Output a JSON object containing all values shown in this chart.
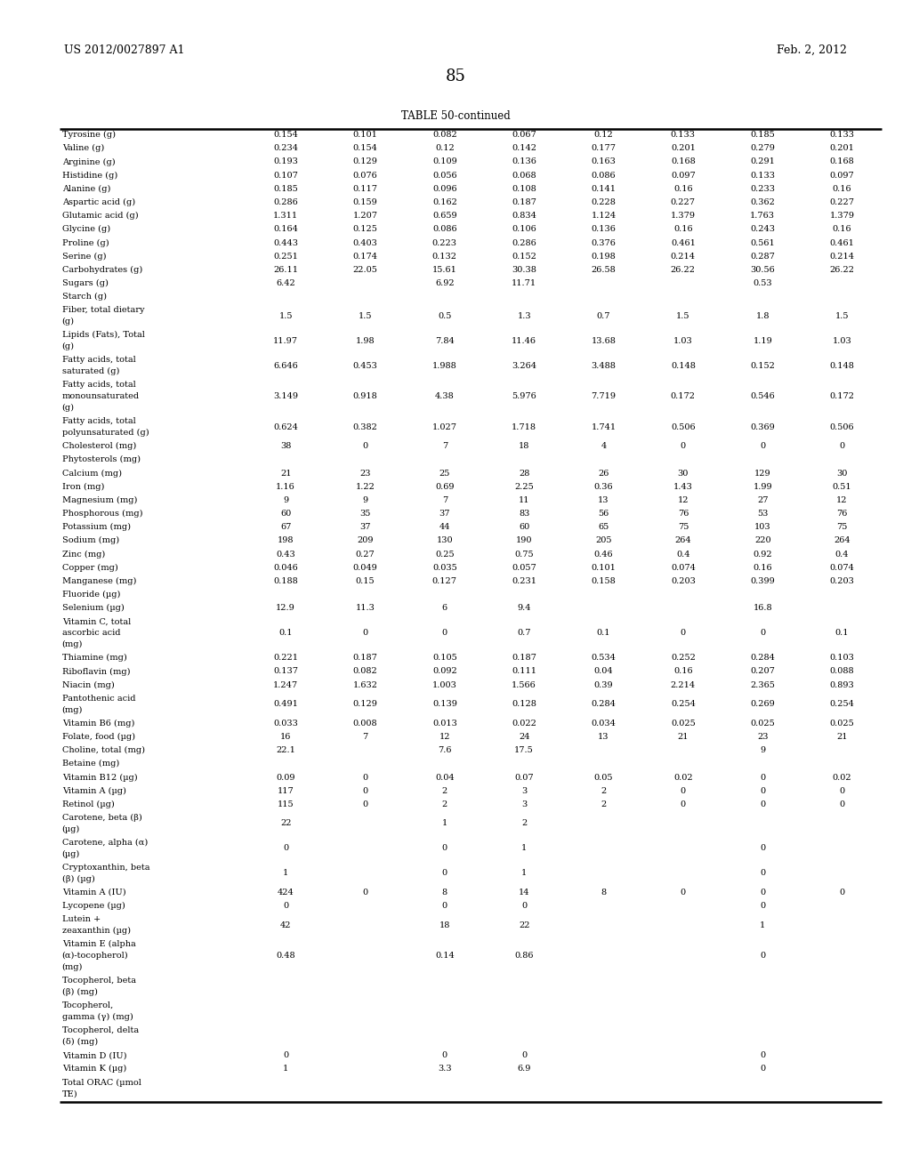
{
  "page_number": "85",
  "patent_left": "US 2012/0027897 A1",
  "patent_right": "Feb. 2, 2012",
  "table_title": "TABLE 50-continued",
  "rows": [
    [
      "Tyrosine (g)",
      "0.154",
      "0.101",
      "0.082",
      "0.067",
      "0.12",
      "0.133",
      "0.185",
      "0.133"
    ],
    [
      "Valine (g)",
      "0.234",
      "0.154",
      "0.12",
      "0.142",
      "0.177",
      "0.201",
      "0.279",
      "0.201"
    ],
    [
      "Arginine (g)",
      "0.193",
      "0.129",
      "0.109",
      "0.136",
      "0.163",
      "0.168",
      "0.291",
      "0.168"
    ],
    [
      "Histidine (g)",
      "0.107",
      "0.076",
      "0.056",
      "0.068",
      "0.086",
      "0.097",
      "0.133",
      "0.097"
    ],
    [
      "Alanine (g)",
      "0.185",
      "0.117",
      "0.096",
      "0.108",
      "0.141",
      "0.16",
      "0.233",
      "0.16"
    ],
    [
      "Aspartic acid (g)",
      "0.286",
      "0.159",
      "0.162",
      "0.187",
      "0.228",
      "0.227",
      "0.362",
      "0.227"
    ],
    [
      "Glutamic acid (g)",
      "1.311",
      "1.207",
      "0.659",
      "0.834",
      "1.124",
      "1.379",
      "1.763",
      "1.379"
    ],
    [
      "Glycine (g)",
      "0.164",
      "0.125",
      "0.086",
      "0.106",
      "0.136",
      "0.16",
      "0.243",
      "0.16"
    ],
    [
      "Proline (g)",
      "0.443",
      "0.403",
      "0.223",
      "0.286",
      "0.376",
      "0.461",
      "0.561",
      "0.461"
    ],
    [
      "Serine (g)",
      "0.251",
      "0.174",
      "0.132",
      "0.152",
      "0.198",
      "0.214",
      "0.287",
      "0.214"
    ],
    [
      "Carbohydrates (g)",
      "26.11",
      "22.05",
      "15.61",
      "30.38",
      "26.58",
      "26.22",
      "30.56",
      "26.22"
    ],
    [
      "Sugars (g)",
      "6.42",
      "",
      "6.92",
      "11.71",
      "",
      "",
      "0.53",
      ""
    ],
    [
      "Starch (g)",
      "",
      "",
      "",
      "",
      "",
      "",
      "",
      ""
    ],
    [
      "Fiber, total dietary\n(g)",
      "1.5",
      "1.5",
      "0.5",
      "1.3",
      "0.7",
      "1.5",
      "1.8",
      "1.5"
    ],
    [
      "Lipids (Fats), Total\n(g)",
      "11.97",
      "1.98",
      "7.84",
      "11.46",
      "13.68",
      "1.03",
      "1.19",
      "1.03"
    ],
    [
      "Fatty acids, total\nsaturated (g)",
      "6.646",
      "0.453",
      "1.988",
      "3.264",
      "3.488",
      "0.148",
      "0.152",
      "0.148"
    ],
    [
      "Fatty acids, total\nmonounsaturated\n(g)",
      "3.149",
      "0.918",
      "4.38",
      "5.976",
      "7.719",
      "0.172",
      "0.546",
      "0.172"
    ],
    [
      "Fatty acids, total\npolyunsaturated (g)",
      "0.624",
      "0.382",
      "1.027",
      "1.718",
      "1.741",
      "0.506",
      "0.369",
      "0.506"
    ],
    [
      "Cholesterol (mg)",
      "38",
      "0",
      "7",
      "18",
      "4",
      "0",
      "0",
      "0"
    ],
    [
      "Phytosterols (mg)",
      "",
      "",
      "",
      "",
      "",
      "",
      "",
      ""
    ],
    [
      "Calcium (mg)",
      "21",
      "23",
      "25",
      "28",
      "26",
      "30",
      "129",
      "30"
    ],
    [
      "Iron (mg)",
      "1.16",
      "1.22",
      "0.69",
      "2.25",
      "0.36",
      "1.43",
      "1.99",
      "0.51"
    ],
    [
      "Magnesium (mg)",
      "9",
      "9",
      "7",
      "11",
      "13",
      "12",
      "27",
      "12"
    ],
    [
      "Phosphorous (mg)",
      "60",
      "35",
      "37",
      "83",
      "56",
      "76",
      "53",
      "76"
    ],
    [
      "Potassium (mg)",
      "67",
      "37",
      "44",
      "60",
      "65",
      "75",
      "103",
      "75"
    ],
    [
      "Sodium (mg)",
      "198",
      "209",
      "130",
      "190",
      "205",
      "264",
      "220",
      "264"
    ],
    [
      "Zinc (mg)",
      "0.43",
      "0.27",
      "0.25",
      "0.75",
      "0.46",
      "0.4",
      "0.92",
      "0.4"
    ],
    [
      "Copper (mg)",
      "0.046",
      "0.049",
      "0.035",
      "0.057",
      "0.101",
      "0.074",
      "0.16",
      "0.074"
    ],
    [
      "Manganese (mg)",
      "0.188",
      "0.15",
      "0.127",
      "0.231",
      "0.158",
      "0.203",
      "0.399",
      "0.203"
    ],
    [
      "Fluoride (µg)",
      "",
      "",
      "",
      "",
      "",
      "",
      "",
      ""
    ],
    [
      "Selenium (µg)",
      "12.9",
      "11.3",
      "6",
      "9.4",
      "",
      "",
      "16.8",
      ""
    ],
    [
      "Vitamin C, total\nascorbic acid\n(mg)",
      "0.1",
      "0",
      "0",
      "0.7",
      "0.1",
      "0",
      "0",
      "0.1"
    ],
    [
      "Thiamine (mg)",
      "0.221",
      "0.187",
      "0.105",
      "0.187",
      "0.534",
      "0.252",
      "0.284",
      "0.103"
    ],
    [
      "Riboflavin (mg)",
      "0.137",
      "0.082",
      "0.092",
      "0.111",
      "0.04",
      "0.16",
      "0.207",
      "0.088"
    ],
    [
      "Niacin (mg)",
      "1.247",
      "1.632",
      "1.003",
      "1.566",
      "0.39",
      "2.214",
      "2.365",
      "0.893"
    ],
    [
      "Pantothenic acid\n(mg)",
      "0.491",
      "0.129",
      "0.139",
      "0.128",
      "0.284",
      "0.254",
      "0.269",
      "0.254"
    ],
    [
      "Vitamin B6 (mg)",
      "0.033",
      "0.008",
      "0.013",
      "0.022",
      "0.034",
      "0.025",
      "0.025",
      "0.025"
    ],
    [
      "Folate, food (µg)",
      "16",
      "7",
      "12",
      "24",
      "13",
      "21",
      "23",
      "21"
    ],
    [
      "Choline, total (mg)",
      "22.1",
      "",
      "7.6",
      "17.5",
      "",
      "",
      "9",
      ""
    ],
    [
      "Betaine (mg)",
      "",
      "",
      "",
      "",
      "",
      "",
      "",
      ""
    ],
    [
      "Vitamin B12 (µg)",
      "0.09",
      "0",
      "0.04",
      "0.07",
      "0.05",
      "0.02",
      "0",
      "0.02"
    ],
    [
      "Vitamin A (µg)",
      "117",
      "0",
      "2",
      "3",
      "2",
      "0",
      "0",
      "0"
    ],
    [
      "Retinol (µg)",
      "115",
      "0",
      "2",
      "3",
      "2",
      "0",
      "0",
      "0"
    ],
    [
      "Carotene, beta (β)\n(µg)",
      "22",
      "",
      "1",
      "2",
      "",
      "",
      "",
      ""
    ],
    [
      "Carotene, alpha (α)\n(µg)",
      "0",
      "",
      "0",
      "1",
      "",
      "",
      "0",
      ""
    ],
    [
      "Cryptoxanthin, beta\n(β) (µg)",
      "1",
      "",
      "0",
      "1",
      "",
      "",
      "0",
      ""
    ],
    [
      "Vitamin A (IU)",
      "424",
      "0",
      "8",
      "14",
      "8",
      "0",
      "0",
      "0"
    ],
    [
      "Lycopene (µg)",
      "0",
      "",
      "0",
      "0",
      "",
      "",
      "0",
      ""
    ],
    [
      "Lutein +\nzeaxanthin (µg)",
      "42",
      "",
      "18",
      "22",
      "",
      "",
      "1",
      ""
    ],
    [
      "Vitamin E (alpha\n(α)-tocopherol)\n(mg)",
      "0.48",
      "",
      "0.14",
      "0.86",
      "",
      "",
      "0",
      ""
    ],
    [
      "Tocopherol, beta\n(β) (mg)",
      "",
      "",
      "",
      "",
      "",
      "",
      "",
      ""
    ],
    [
      "Tocopherol,\ngamma (γ) (mg)",
      "",
      "",
      "",
      "",
      "",
      "",
      "",
      ""
    ],
    [
      "Tocopherol, delta\n(δ) (mg)",
      "",
      "",
      "",
      "",
      "",
      "",
      "",
      ""
    ],
    [
      "Vitamin D (IU)",
      "0",
      "",
      "0",
      "0",
      "",
      "",
      "0",
      ""
    ],
    [
      "Vitamin K (µg)",
      "1",
      "",
      "3.3",
      "6.9",
      "",
      "",
      "0",
      ""
    ],
    [
      "Total ORAC (µmol\nTE)",
      "",
      "",
      "",
      "",
      "",
      "",
      "",
      ""
    ]
  ]
}
